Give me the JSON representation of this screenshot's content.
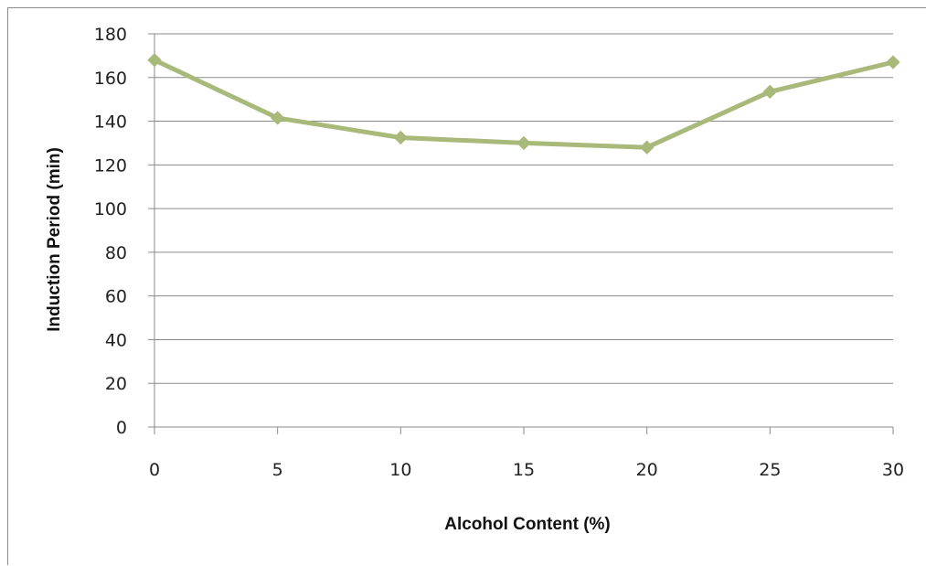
{
  "chart_data": {
    "type": "line",
    "title": "",
    "xlabel": "Alcohol Content (%)",
    "ylabel": "Induction Period (min)",
    "x": [
      0,
      5,
      10,
      15,
      20,
      25,
      30
    ],
    "x_tick_labels": [
      "0",
      "5",
      "10",
      "15",
      "20",
      "25",
      "30"
    ],
    "y_tick_labels": [
      "0",
      "20",
      "40",
      "60",
      "80",
      "100",
      "120",
      "140",
      "160",
      "180"
    ],
    "series": [
      {
        "values": [
          168,
          141.5,
          132.5,
          130,
          128,
          153.5,
          167
        ],
        "color": "#a9b97a",
        "marker": "diamond"
      }
    ],
    "xlim": [
      0,
      30
    ],
    "ylim": [
      0,
      180
    ],
    "grid": "horizontal",
    "legend": "none"
  }
}
